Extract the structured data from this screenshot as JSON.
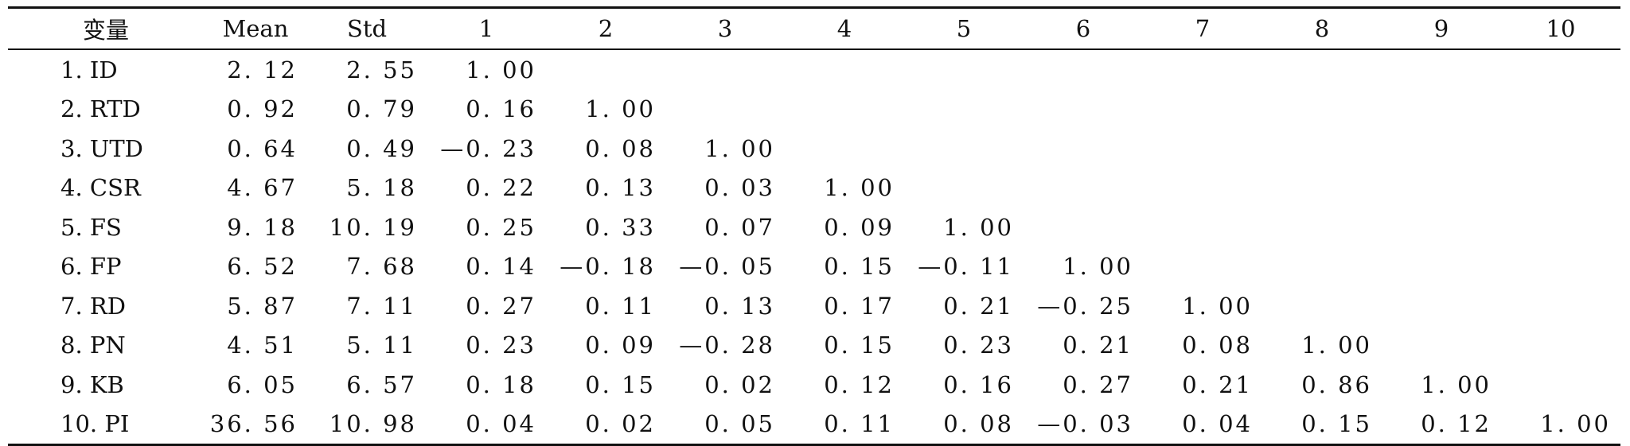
{
  "table": {
    "headers": [
      "变量",
      "Mean",
      "Std",
      "1",
      "2",
      "3",
      "4",
      "5",
      "6",
      "7",
      "8",
      "9",
      "10"
    ],
    "rows": [
      [
        "1. ID",
        "2. 12",
        "2. 55",
        "1. 00",
        "",
        "",
        "",
        "",
        "",
        "",
        "",
        "",
        ""
      ],
      [
        "2. RTD",
        "0. 92",
        "0. 79",
        "0. 16",
        "1. 00",
        "",
        "",
        "",
        "",
        "",
        "",
        "",
        ""
      ],
      [
        "3. UTD",
        "0. 64",
        "0. 49",
        "—0. 23",
        "0. 08",
        "1. 00",
        "",
        "",
        "",
        "",
        "",
        "",
        ""
      ],
      [
        "4. CSR",
        "4. 67",
        "5. 18",
        "0. 22",
        "0. 13",
        "0. 03",
        "1. 00",
        "",
        "",
        "",
        "",
        "",
        ""
      ],
      [
        "5. FS",
        "9. 18",
        "10. 19",
        "0. 25",
        "0. 33",
        "0. 07",
        "0. 09",
        "1. 00",
        "",
        "",
        "",
        "",
        ""
      ],
      [
        "6. FP",
        "6. 52",
        "7. 68",
        "0. 14",
        "—0. 18",
        "—0. 05",
        "0. 15",
        "—0. 11",
        "1. 00",
        "",
        "",
        "",
        ""
      ],
      [
        "7. RD",
        "5. 87",
        "7. 11",
        "0. 27",
        "0. 11",
        "0. 13",
        "0. 17",
        "0. 21",
        "—0. 25",
        "1. 00",
        "",
        "",
        ""
      ],
      [
        "8. PN",
        "4. 51",
        "5. 11",
        "0. 23",
        "0. 09",
        "—0. 28",
        "0. 15",
        "0. 23",
        "0. 21",
        "0. 08",
        "1. 00",
        "",
        ""
      ],
      [
        "9. KB",
        "6. 05",
        "6. 57",
        "0. 18",
        "0. 15",
        "0. 02",
        "0. 12",
        "0. 16",
        "0. 27",
        "0. 21",
        "0. 86",
        "1. 00",
        ""
      ],
      [
        "10. PI",
        "36. 56",
        "10. 98",
        "0. 04",
        "0. 02",
        "0. 05",
        "0. 11",
        "0. 08",
        "—0. 03",
        "0. 04",
        "0. 15",
        "0. 12",
        "1. 00"
      ]
    ]
  }
}
